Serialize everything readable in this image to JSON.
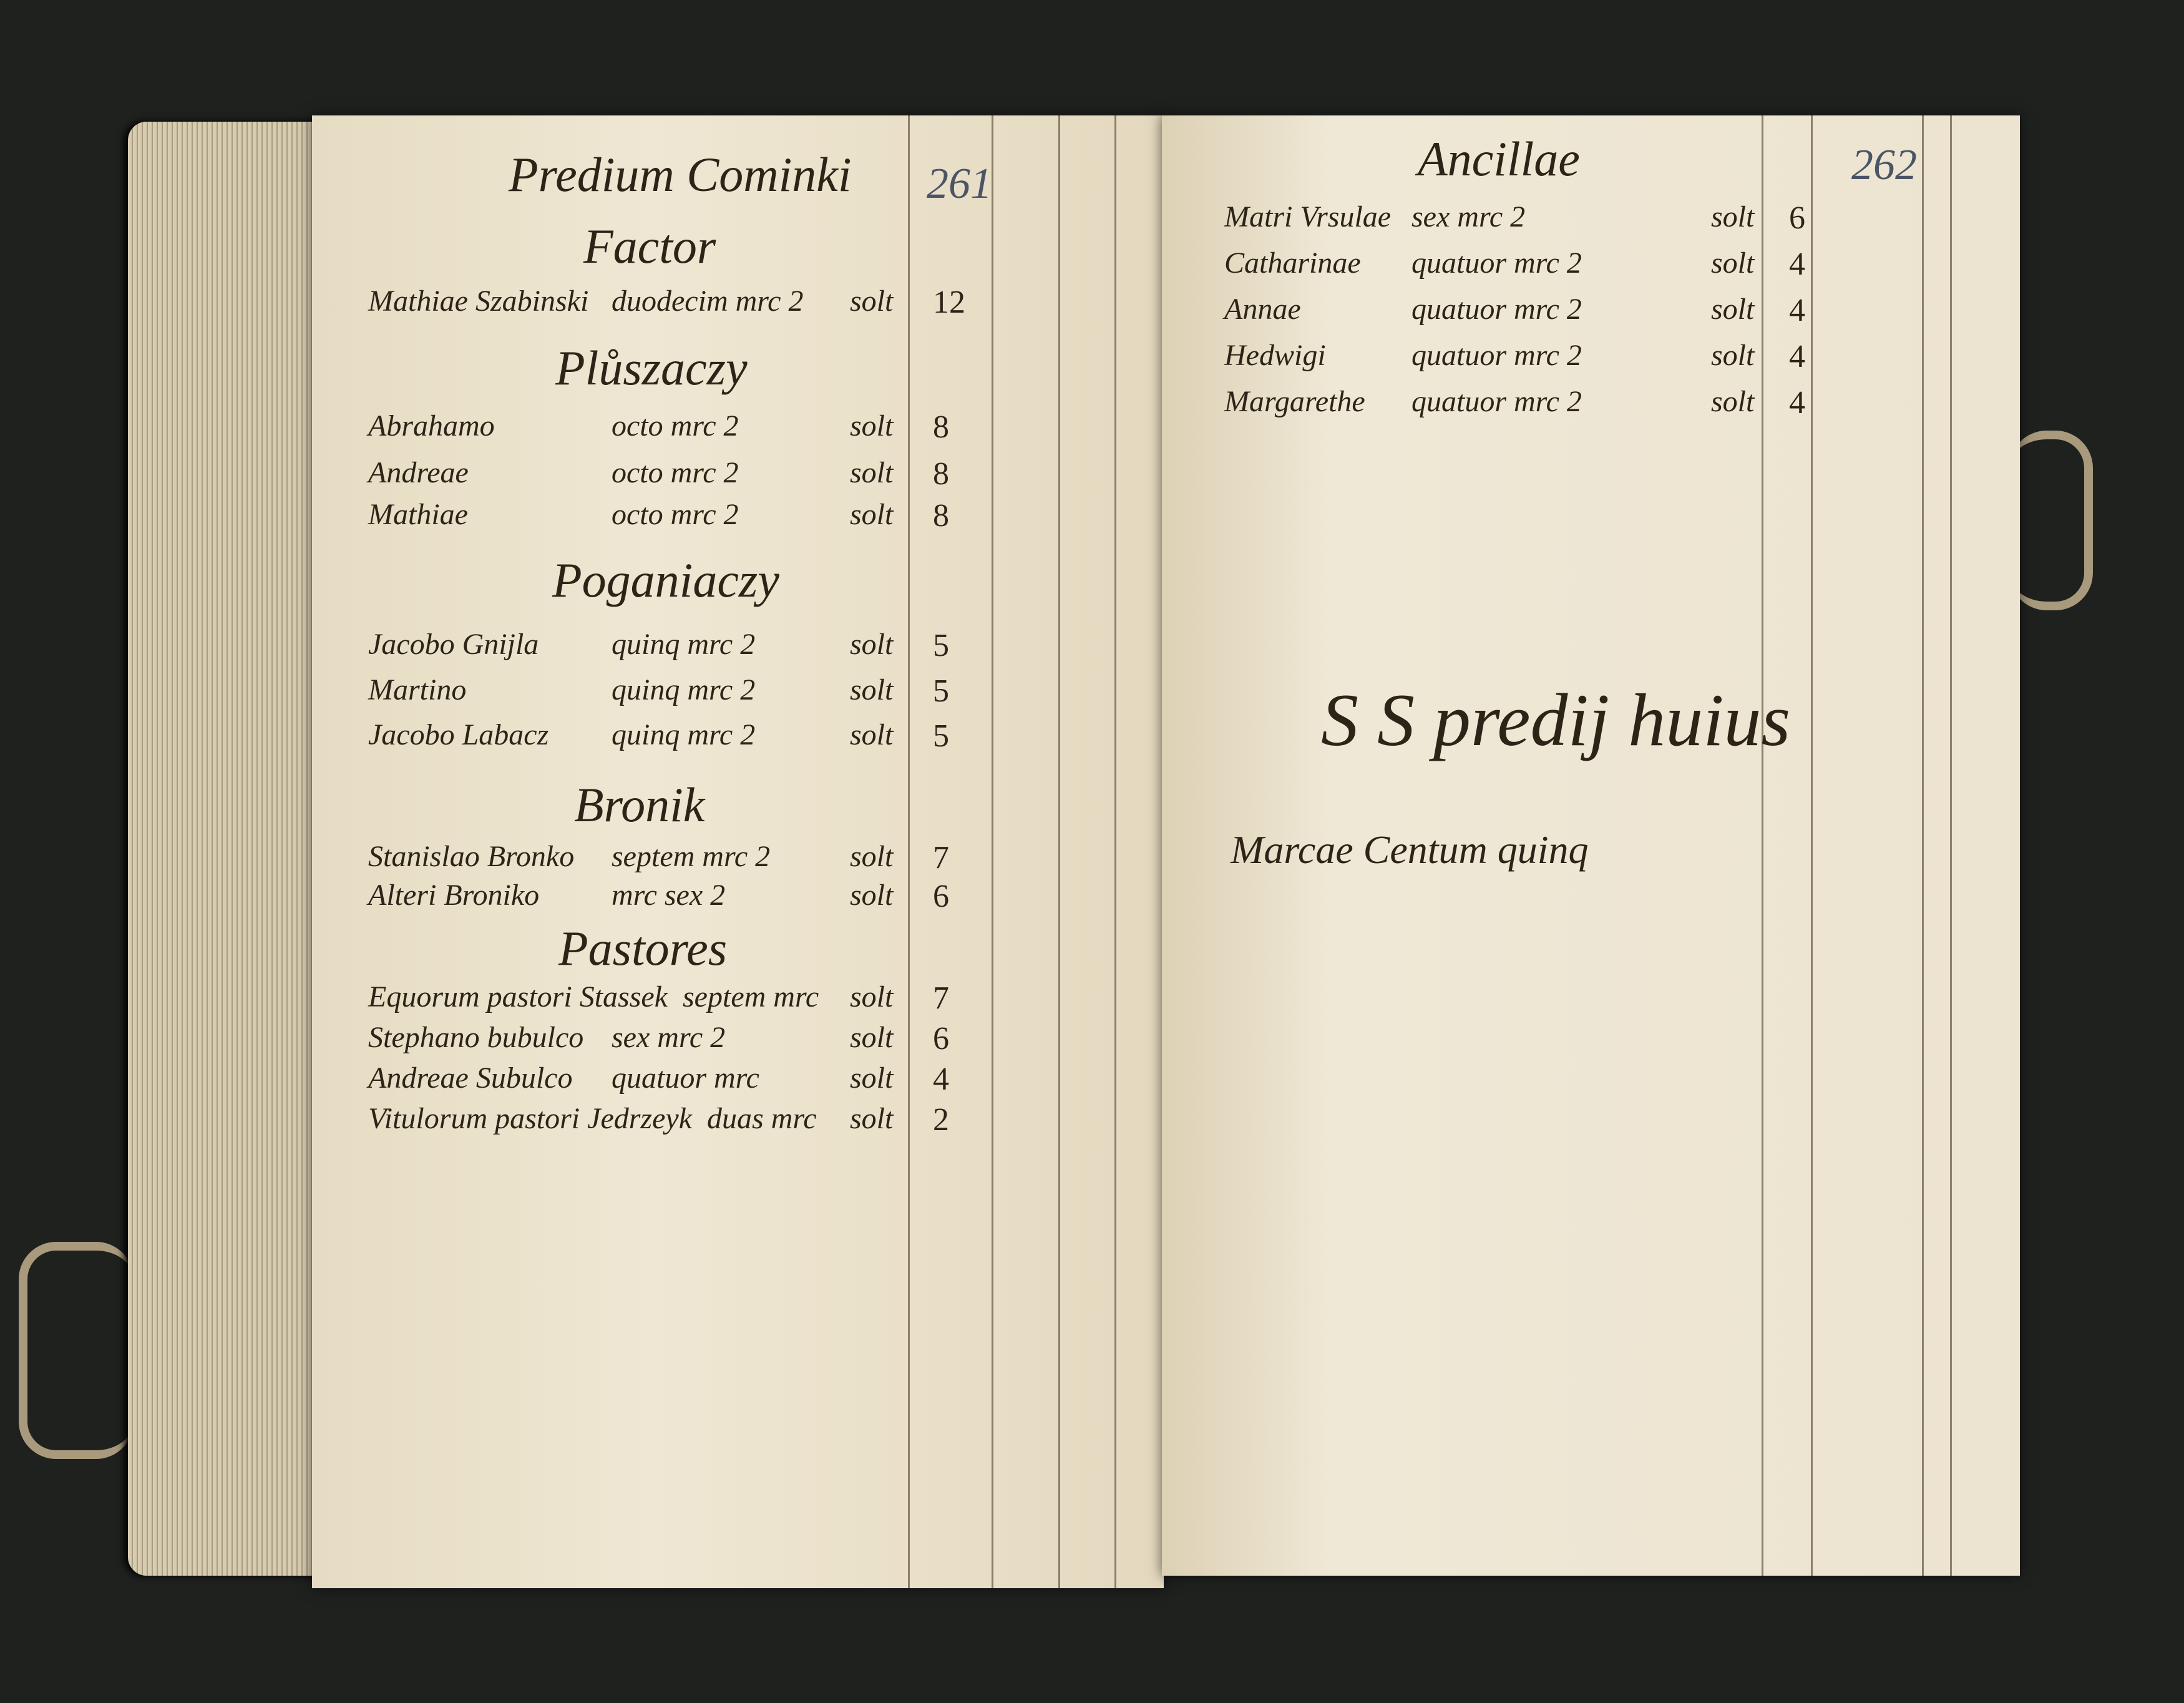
{
  "left_page": {
    "folio": "261",
    "title": "Predium Cominki",
    "sections": [
      {
        "heading": "Factor",
        "rows": [
          {
            "name": "Mathiae Szabinski",
            "amount": "duodecim mrc 2",
            "unit": "solt",
            "value": "12"
          }
        ]
      },
      {
        "heading": "Plůszaczy",
        "rows": [
          {
            "name": "Abrahamo",
            "amount": "octo mrc 2",
            "unit": "solt",
            "value": "8"
          },
          {
            "name": "Andreae",
            "amount": "octo mrc 2",
            "unit": "solt",
            "value": "8"
          },
          {
            "name": "Mathiae",
            "amount": "octo mrc 2",
            "unit": "solt",
            "value": "8"
          }
        ]
      },
      {
        "heading": "Poganiaczy",
        "rows": [
          {
            "name": "Jacobo Gnijla",
            "amount": "quinq mrc 2",
            "unit": "solt",
            "value": "5"
          },
          {
            "name": "Martino",
            "amount": "quinq mrc 2",
            "unit": "solt",
            "value": "5"
          },
          {
            "name": "Jacobo Labacz",
            "amount": "quinq mrc 2",
            "unit": "solt",
            "value": "5"
          }
        ]
      },
      {
        "heading": "Bronik",
        "rows": [
          {
            "name": "Stanislao Bronko",
            "amount": "septem mrc 2",
            "unit": "solt",
            "value": "7"
          },
          {
            "name": "Alteri Broniko",
            "amount": "mrc sex 2",
            "unit": "solt",
            "value": "6"
          }
        ]
      },
      {
        "heading": "Pastores",
        "rows": [
          {
            "name": "Equorum pastori Stassek",
            "amount": "septem mrc",
            "unit": "solt",
            "value": "7"
          },
          {
            "name": "Stephano bubulco",
            "amount": "sex mrc 2",
            "unit": "solt",
            "value": "6"
          },
          {
            "name": "Andreae Subulco",
            "amount": "quatuor mrc",
            "unit": "solt",
            "value": "4"
          },
          {
            "name": "Vitulorum pastori Jedrzeyk",
            "amount": "duas mrc",
            "unit": "solt",
            "value": "2"
          }
        ]
      }
    ]
  },
  "right_page": {
    "folio": "262",
    "heading": "Ancillae",
    "rows": [
      {
        "name": "Matri Vrsulae",
        "amount": "sex mrc 2",
        "unit": "solt",
        "value": "6"
      },
      {
        "name": "Catharinae",
        "amount": "quatuor mrc 2",
        "unit": "solt",
        "value": "4"
      },
      {
        "name": "Annae",
        "amount": "quatuor mrc 2",
        "unit": "solt",
        "value": "4"
      },
      {
        "name": "Hedwigi",
        "amount": "quatuor mrc 2",
        "unit": "solt",
        "value": "4"
      },
      {
        "name": "Margarethe",
        "amount": "quatuor mrc 2",
        "unit": "solt",
        "value": "4"
      }
    ],
    "summary_heading": "S S predij huius",
    "summary_line": "Marcae Centum quinq"
  },
  "colors": {
    "paper": "#ece4cf",
    "ink": "#2d2418",
    "background": "#1f211f",
    "pencil_folio": "#4c5566"
  }
}
